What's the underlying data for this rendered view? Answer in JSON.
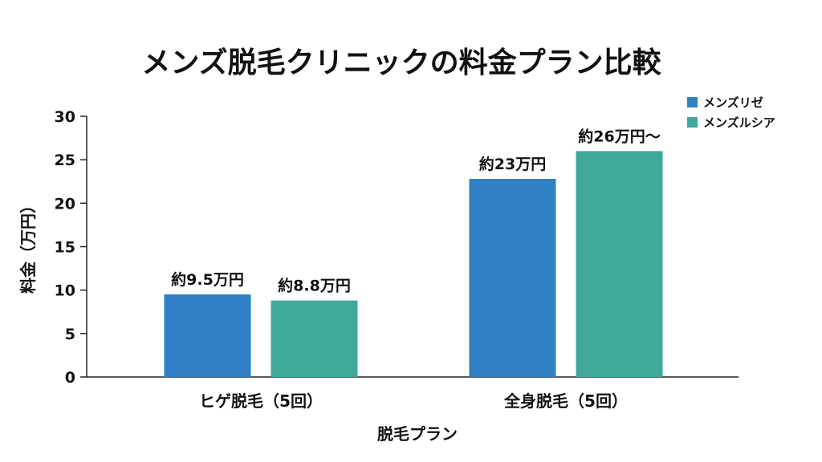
{
  "chart_data": {
    "type": "bar",
    "title": "メンズ脱毛クリニックの料金プラン比較",
    "xlabel": "脱毛プラン",
    "ylabel": "料金（万円）",
    "categories": [
      "ヒゲ脱毛（5回）",
      "全身脱毛（5回）"
    ],
    "series": [
      {
        "name": "メンズリゼ",
        "color": "#2f80c4",
        "values": [
          9.5,
          22.8
        ],
        "labels": [
          "約9.5万円",
          "約23万円"
        ]
      },
      {
        "name": "メンズルシア",
        "color": "#40a99a",
        "values": [
          8.8,
          26
        ],
        "labels": [
          "約8.8万円",
          "約26万円〜"
        ]
      }
    ],
    "ylim": [
      0,
      30
    ],
    "yticks": [
      0,
      5,
      10,
      15,
      20,
      25,
      30
    ],
    "grid": false,
    "legend_position": "top-right"
  }
}
